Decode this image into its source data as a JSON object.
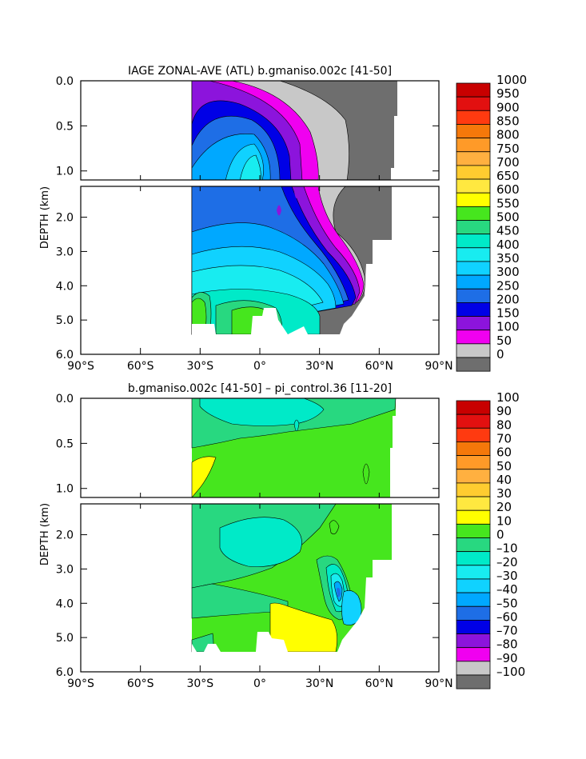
{
  "chart_data": [
    {
      "type": "heatmap",
      "title": "IAGE ZONAL-AVE (ATL) b.gmaniso.002c  [41-50]",
      "ylabel": "DEPTH (km)",
      "x_ticks": [
        "90°S",
        "60°S",
        "30°S",
        "0°",
        "30°N",
        "60°N",
        "90°N"
      ],
      "x_tick_values": [
        -90,
        -60,
        -30,
        0,
        30,
        60,
        90
      ],
      "y_ticks_upper": [
        "0.0",
        "0.5",
        "1.0"
      ],
      "y_ticks_upper_values": [
        0,
        0.5,
        1.0
      ],
      "y_ticks_lower": [
        "2.0",
        "3.0",
        "4.0",
        "5.0",
        "6.0"
      ],
      "y_ticks_lower_values": [
        2,
        3,
        4,
        5,
        6
      ],
      "xlim": [
        -90,
        90
      ],
      "ylim_upper": [
        0,
        1.1
      ],
      "ylim_lower": [
        1.1,
        6.0
      ],
      "colorbar_labels": [
        "1000",
        "950",
        "900",
        "850",
        "800",
        "750",
        "700",
        "650",
        "600",
        "550",
        "500",
        "450",
        "400",
        "350",
        "300",
        "250",
        "200",
        "150",
        "100",
        "50",
        "0"
      ],
      "colorbar_colors": [
        "#c80000",
        "#e21010",
        "#ff3a10",
        "#f5780a",
        "#ff9a28",
        "#ffb040",
        "#ffcc30",
        "#ffe840",
        "#ffff00",
        "#46e61e",
        "#28d880",
        "#00eac8",
        "#18ecf0",
        "#10d2ff",
        "#00a8ff",
        "#1e6ee6",
        "#0000e6",
        "#8c14dc",
        "#f000f0",
        "#c8c8c8",
        "#6e6e6e"
      ],
      "data_extent": {
        "lat_min": -35,
        "lat_max": 66,
        "depth_max": 5.4
      }
    },
    {
      "type": "heatmap",
      "title": "b.gmaniso.002c  [41-50]  – pi_control.36  [11-20]",
      "ylabel": "DEPTH (km)",
      "x_ticks": [
        "90°S",
        "60°S",
        "30°S",
        "0°",
        "30°N",
        "60°N",
        "90°N"
      ],
      "x_tick_values": [
        -90,
        -60,
        -30,
        0,
        30,
        60,
        90
      ],
      "y_ticks_upper": [
        "0.0",
        "0.5",
        "1.0"
      ],
      "y_ticks_upper_values": [
        0,
        0.5,
        1.0
      ],
      "y_ticks_lower": [
        "2.0",
        "3.0",
        "4.0",
        "5.0",
        "6.0"
      ],
      "y_ticks_lower_values": [
        2,
        3,
        4,
        5,
        6
      ],
      "xlim": [
        -90,
        90
      ],
      "ylim_upper": [
        0,
        1.1
      ],
      "ylim_lower": [
        1.1,
        6.0
      ],
      "colorbar_labels": [
        "100",
        "90",
        "80",
        "70",
        "60",
        "50",
        "40",
        "30",
        "20",
        "10",
        "0",
        "–10",
        "–20",
        "–30",
        "–40",
        "–50",
        "–60",
        "–70",
        "–80",
        "–90",
        "–100"
      ],
      "colorbar_colors": [
        "#c80000",
        "#e21010",
        "#ff3a10",
        "#f5780a",
        "#ff9a28",
        "#ffb040",
        "#ffcc30",
        "#ffe840",
        "#ffff00",
        "#46e61e",
        "#28d880",
        "#00eac8",
        "#18ecf0",
        "#10d2ff",
        "#00a8ff",
        "#1e6ee6",
        "#0000e6",
        "#8c14dc",
        "#f000f0",
        "#c8c8c8",
        "#6e6e6e"
      ],
      "data_extent": {
        "lat_min": -35,
        "lat_max": 66,
        "depth_max": 5.4
      }
    }
  ]
}
